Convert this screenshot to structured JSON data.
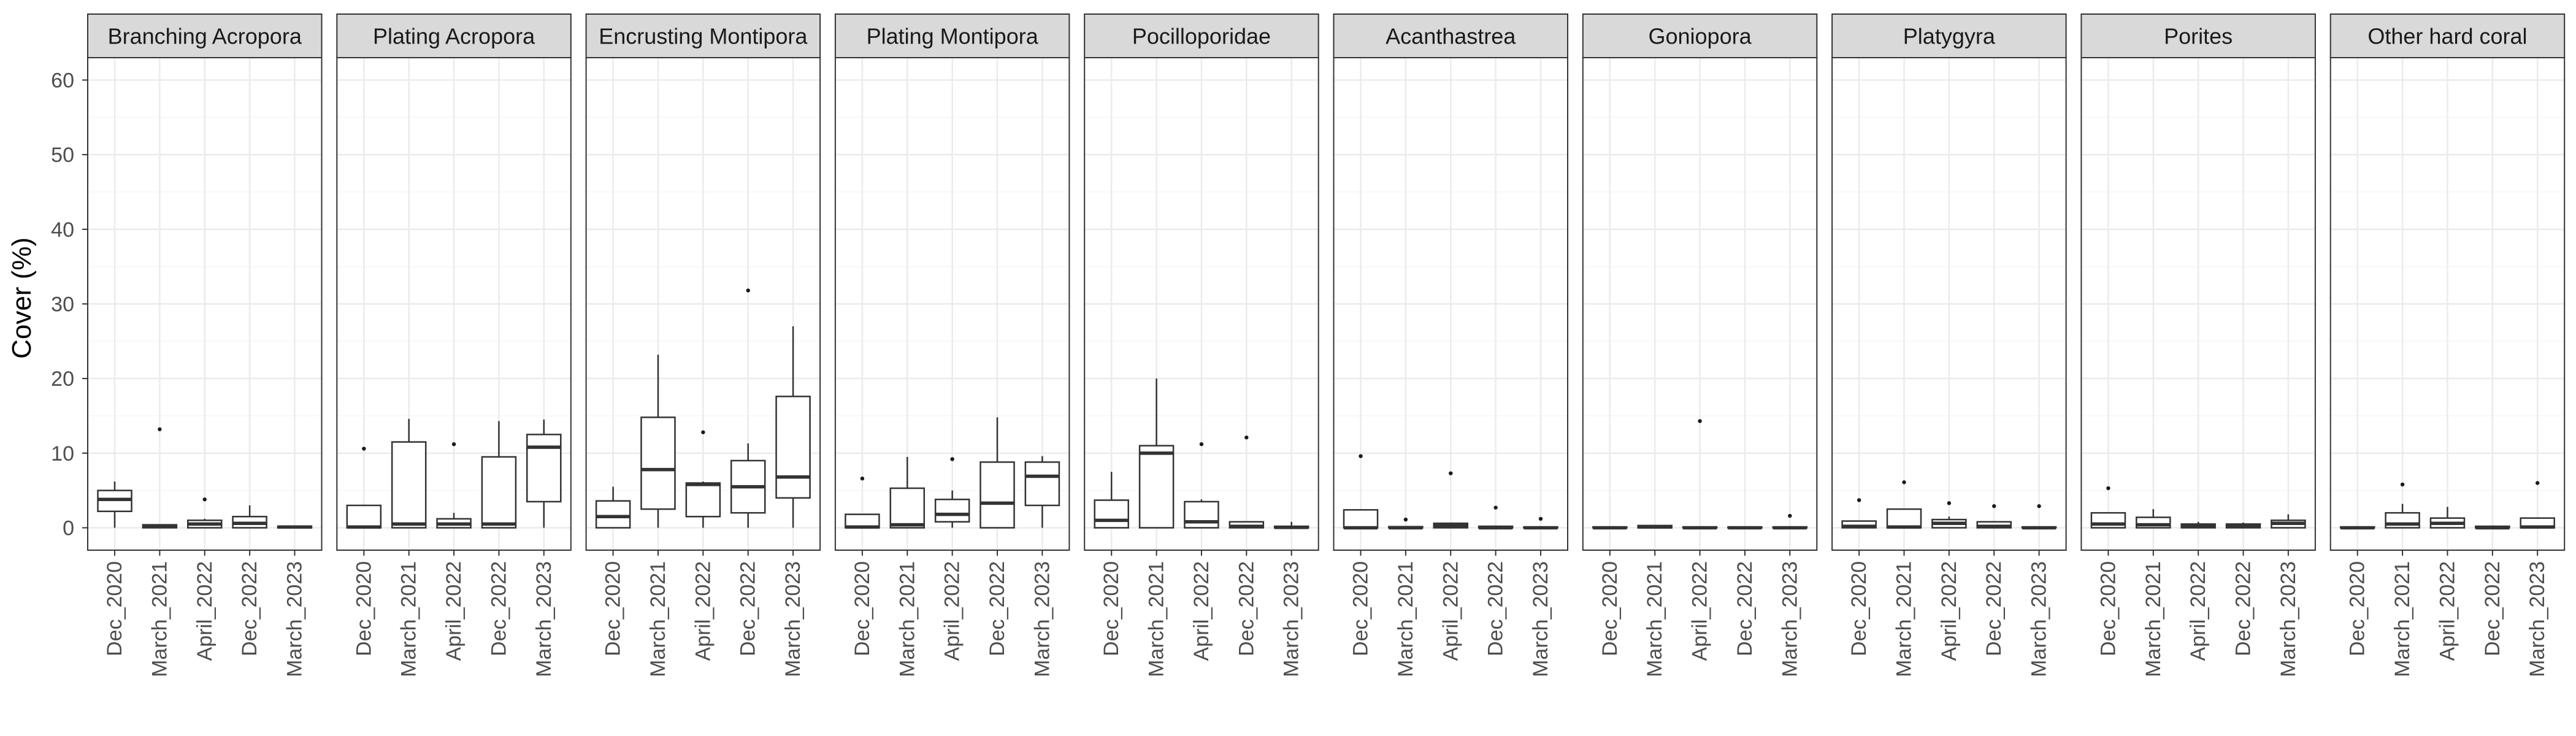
{
  "chart_data": {
    "type": "boxplot",
    "ylabel": "Cover (%)",
    "xlabel": "",
    "ylim": [
      0,
      60
    ],
    "yticks": [
      0,
      10,
      20,
      30,
      40,
      50,
      60
    ],
    "grid": true,
    "categories": [
      "Dec_2020",
      "March_2021",
      "April_2022",
      "Dec_2022",
      "March_2023"
    ],
    "facets": [
      {
        "name": "Branching Acropora",
        "boxes": [
          {
            "q1": 2.2,
            "median": 3.8,
            "q3": 5.0,
            "lower": 0.0,
            "upper": 6.2,
            "outliers": []
          },
          {
            "q1": 0.0,
            "median": 0.2,
            "q3": 0.4,
            "lower": 0.0,
            "upper": 0.4,
            "outliers": [
              13.2
            ]
          },
          {
            "q1": 0.0,
            "median": 0.5,
            "q3": 1.0,
            "lower": 0.0,
            "upper": 1.2,
            "outliers": [
              3.8
            ]
          },
          {
            "q1": 0.0,
            "median": 0.6,
            "q3": 1.5,
            "lower": 0.0,
            "upper": 3.0,
            "outliers": []
          },
          {
            "q1": 0.0,
            "median": 0.1,
            "q3": 0.2,
            "lower": 0.0,
            "upper": 0.3,
            "outliers": []
          }
        ]
      },
      {
        "name": "Plating Acropora",
        "boxes": [
          {
            "q1": 0.0,
            "median": 0.1,
            "q3": 3.0,
            "lower": 0.0,
            "upper": 3.0,
            "outliers": [
              10.6
            ]
          },
          {
            "q1": 0.0,
            "median": 0.5,
            "q3": 11.5,
            "lower": 0.0,
            "upper": 14.6,
            "outliers": []
          },
          {
            "q1": 0.0,
            "median": 0.5,
            "q3": 1.2,
            "lower": 0.0,
            "upper": 2.0,
            "outliers": [
              11.2
            ]
          },
          {
            "q1": 0.0,
            "median": 0.5,
            "q3": 9.5,
            "lower": 0.0,
            "upper": 14.3,
            "outliers": []
          },
          {
            "q1": 3.5,
            "median": 10.8,
            "q3": 12.5,
            "lower": 0.0,
            "upper": 14.5,
            "outliers": []
          }
        ]
      },
      {
        "name": "Encrusting Montipora",
        "boxes": [
          {
            "q1": 0.0,
            "median": 1.5,
            "q3": 3.6,
            "lower": 0.0,
            "upper": 5.5,
            "outliers": []
          },
          {
            "q1": 2.5,
            "median": 7.8,
            "q3": 14.8,
            "lower": 0.0,
            "upper": 23.2,
            "outliers": []
          },
          {
            "q1": 1.5,
            "median": 5.8,
            "q3": 6.0,
            "lower": 0.0,
            "upper": 6.2,
            "outliers": [
              12.8
            ]
          },
          {
            "q1": 2.0,
            "median": 5.5,
            "q3": 9.0,
            "lower": 0.0,
            "upper": 11.3,
            "outliers": [
              31.8
            ]
          },
          {
            "q1": 4.0,
            "median": 6.8,
            "q3": 17.6,
            "lower": 0.0,
            "upper": 27.0,
            "outliers": []
          }
        ]
      },
      {
        "name": "Plating Montipora",
        "boxes": [
          {
            "q1": 0.0,
            "median": 0.1,
            "q3": 1.8,
            "lower": 0.0,
            "upper": 1.8,
            "outliers": [
              6.6
            ]
          },
          {
            "q1": 0.0,
            "median": 0.4,
            "q3": 5.3,
            "lower": 0.0,
            "upper": 9.5,
            "outliers": []
          },
          {
            "q1": 0.8,
            "median": 1.8,
            "q3": 3.8,
            "lower": 0.0,
            "upper": 5.0,
            "outliers": [
              9.2
            ]
          },
          {
            "q1": 0.0,
            "median": 3.3,
            "q3": 8.8,
            "lower": 0.0,
            "upper": 14.8,
            "outliers": []
          },
          {
            "q1": 3.0,
            "median": 6.9,
            "q3": 8.8,
            "lower": 0.0,
            "upper": 9.6,
            "outliers": []
          }
        ]
      },
      {
        "name": "Pocilloporidae",
        "boxes": [
          {
            "q1": 0.0,
            "median": 1.0,
            "q3": 3.7,
            "lower": 0.0,
            "upper": 7.5,
            "outliers": []
          },
          {
            "q1": 0.0,
            "median": 10.0,
            "q3": 11.0,
            "lower": 0.0,
            "upper": 20.0,
            "outliers": []
          },
          {
            "q1": 0.0,
            "median": 0.8,
            "q3": 3.5,
            "lower": 0.0,
            "upper": 3.8,
            "outliers": [
              11.2
            ]
          },
          {
            "q1": 0.0,
            "median": 0.2,
            "q3": 0.8,
            "lower": 0.0,
            "upper": 0.9,
            "outliers": [
              12.1
            ]
          },
          {
            "q1": 0.0,
            "median": 0.05,
            "q3": 0.2,
            "lower": 0.0,
            "upper": 0.8,
            "outliers": []
          }
        ]
      },
      {
        "name": "Acanthastrea",
        "boxes": [
          {
            "q1": 0.0,
            "median": 0.0,
            "q3": 2.4,
            "lower": 0.0,
            "upper": 2.4,
            "outliers": [
              9.6
            ]
          },
          {
            "q1": 0.0,
            "median": 0.0,
            "q3": 0.15,
            "lower": 0.0,
            "upper": 0.2,
            "outliers": [
              1.1
            ]
          },
          {
            "q1": 0.0,
            "median": 0.3,
            "q3": 0.6,
            "lower": 0.0,
            "upper": 0.7,
            "outliers": [
              7.3
            ]
          },
          {
            "q1": 0.0,
            "median": 0.0,
            "q3": 0.2,
            "lower": 0.0,
            "upper": 0.3,
            "outliers": [
              2.7
            ]
          },
          {
            "q1": 0.0,
            "median": 0.0,
            "q3": 0.1,
            "lower": 0.0,
            "upper": 0.1,
            "outliers": [
              1.2
            ]
          }
        ]
      },
      {
        "name": "Goniopora",
        "boxes": [
          {
            "q1": 0.0,
            "median": 0.0,
            "q3": 0.1,
            "lower": 0.0,
            "upper": 0.1,
            "outliers": []
          },
          {
            "q1": 0.0,
            "median": 0.1,
            "q3": 0.3,
            "lower": 0.0,
            "upper": 0.4,
            "outliers": []
          },
          {
            "q1": 0.0,
            "median": 0.0,
            "q3": 0.1,
            "lower": 0.0,
            "upper": 0.1,
            "outliers": [
              14.3
            ]
          },
          {
            "q1": 0.0,
            "median": 0.0,
            "q3": 0.1,
            "lower": 0.0,
            "upper": 0.1,
            "outliers": []
          },
          {
            "q1": 0.0,
            "median": 0.0,
            "q3": 0.1,
            "lower": 0.0,
            "upper": 0.2,
            "outliers": [
              1.6
            ]
          }
        ]
      },
      {
        "name": "Platygyra",
        "boxes": [
          {
            "q1": 0.0,
            "median": 0.2,
            "q3": 0.9,
            "lower": 0.0,
            "upper": 0.9,
            "outliers": [
              3.7
            ]
          },
          {
            "q1": 0.0,
            "median": 0.1,
            "q3": 2.5,
            "lower": 0.0,
            "upper": 2.5,
            "outliers": [
              6.1
            ]
          },
          {
            "q1": 0.0,
            "median": 0.6,
            "q3": 1.1,
            "lower": 0.0,
            "upper": 1.5,
            "outliers": [
              3.3
            ]
          },
          {
            "q1": 0.0,
            "median": 0.2,
            "q3": 0.8,
            "lower": 0.0,
            "upper": 0.8,
            "outliers": [
              2.9
            ]
          },
          {
            "q1": 0.0,
            "median": 0.0,
            "q3": 0.1,
            "lower": 0.0,
            "upper": 0.1,
            "outliers": [
              2.9
            ]
          }
        ]
      },
      {
        "name": "Porites",
        "boxes": [
          {
            "q1": 0.0,
            "median": 0.5,
            "q3": 2.0,
            "lower": 0.0,
            "upper": 2.0,
            "outliers": [
              5.3
            ]
          },
          {
            "q1": 0.0,
            "median": 0.4,
            "q3": 1.4,
            "lower": 0.0,
            "upper": 2.5,
            "outliers": []
          },
          {
            "q1": 0.0,
            "median": 0.2,
            "q3": 0.5,
            "lower": 0.0,
            "upper": 0.8,
            "outliers": []
          },
          {
            "q1": 0.0,
            "median": 0.2,
            "q3": 0.5,
            "lower": 0.0,
            "upper": 0.7,
            "outliers": []
          },
          {
            "q1": 0.0,
            "median": 0.6,
            "q3": 1.0,
            "lower": 0.0,
            "upper": 1.8,
            "outliers": []
          }
        ]
      },
      {
        "name": "Other hard coral",
        "boxes": [
          {
            "q1": 0.0,
            "median": 0.0,
            "q3": 0.1,
            "lower": 0.0,
            "upper": 0.1,
            "outliers": []
          },
          {
            "q1": 0.0,
            "median": 0.5,
            "q3": 2.0,
            "lower": 0.0,
            "upper": 3.2,
            "outliers": [
              5.8
            ]
          },
          {
            "q1": 0.0,
            "median": 0.6,
            "q3": 1.3,
            "lower": 0.0,
            "upper": 2.8,
            "outliers": []
          },
          {
            "q1": 0.0,
            "median": 0.0,
            "q3": 0.2,
            "lower": 0.0,
            "upper": 0.3,
            "outliers": []
          },
          {
            "q1": 0.0,
            "median": 0.1,
            "q3": 1.3,
            "lower": 0.0,
            "upper": 1.3,
            "outliers": [
              6.0
            ]
          }
        ]
      }
    ]
  },
  "colors": {
    "background": "#ffffff",
    "panel_border": "#333333",
    "strip_fill": "#d9d9d9",
    "grid_major": "#ebebeb",
    "grid_minor": "#f5f5f5",
    "box_line": "#333333",
    "median_line": "#333333",
    "outlier": "#1a1a1a"
  }
}
